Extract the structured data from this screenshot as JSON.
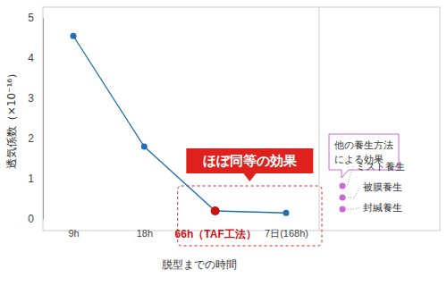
{
  "chart_data": {
    "type": "line",
    "y_label": "透気係数（×10⁻¹⁶）",
    "x_label": "脱型までの時間",
    "categories": [
      "9h",
      "18h",
      "66h（TAF工法）",
      "7日(168h)"
    ],
    "values": [
      4.55,
      1.8,
      0.2,
      0.15
    ],
    "color": "#1f6fb5",
    "colors": [
      "#1f6fb5",
      "#1f6fb5",
      "#cc1111",
      "#1f6fb5"
    ],
    "marker": "circle",
    "ylim": [
      0,
      5
    ],
    "yticks": [
      0,
      1,
      2,
      3,
      4,
      5
    ],
    "grid": false,
    "annotations": [
      {
        "text": "ほぼ同等の効果",
        "color": "#e0201c"
      }
    ],
    "side_note": {
      "title": [
        "他の養生方法",
        "による効果"
      ],
      "items": [
        "ミスト養生",
        "被膜養生",
        "封緘養生"
      ],
      "color": "#cc66dd"
    }
  }
}
